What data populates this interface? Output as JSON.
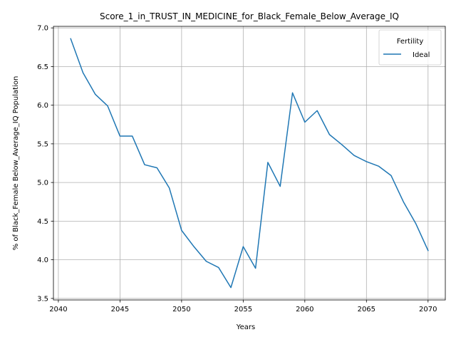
{
  "chart_data": {
    "type": "line",
    "title": "Score_1_in_TRUST_IN_MEDICINE_for_Black_Female_Below_Average_IQ",
    "xlabel": "Years",
    "ylabel": "% of Black_Female Below_Average_IQ Population",
    "xlim": [
      2039.6,
      2071.4
    ],
    "ylim": [
      3.48,
      7.02
    ],
    "xticks": [
      2040,
      2045,
      2050,
      2055,
      2060,
      2065,
      2070
    ],
    "yticks": [
      3.5,
      4.0,
      4.5,
      5.0,
      5.5,
      6.0,
      6.5,
      7.0
    ],
    "xtick_labels": [
      "2040",
      "2045",
      "2050",
      "2055",
      "2060",
      "2065",
      "2070"
    ],
    "ytick_labels": [
      "3.5",
      "4.0",
      "4.5",
      "5.0",
      "5.5",
      "6.0",
      "6.5",
      "7.0"
    ],
    "grid": true,
    "legend": {
      "title": "Fertility",
      "position": "top-right"
    },
    "series": [
      {
        "name": "Ideal",
        "color": "#1f77b4",
        "x": [
          2041,
          2042,
          2043,
          2044,
          2045,
          2046,
          2047,
          2048,
          2049,
          2050,
          2051,
          2052,
          2053,
          2054,
          2055,
          2056,
          2057,
          2058,
          2059,
          2060,
          2061,
          2062,
          2063,
          2064,
          2065,
          2066,
          2067,
          2068,
          2069,
          2070
        ],
        "y": [
          6.86,
          6.42,
          6.14,
          5.99,
          5.6,
          5.6,
          5.23,
          5.19,
          4.93,
          4.38,
          4.17,
          3.98,
          3.9,
          3.64,
          4.17,
          3.89,
          5.26,
          4.95,
          6.16,
          5.78,
          5.93,
          5.62,
          5.49,
          5.35,
          5.27,
          5.21,
          5.09,
          4.75,
          4.47,
          4.12
        ]
      }
    ]
  }
}
